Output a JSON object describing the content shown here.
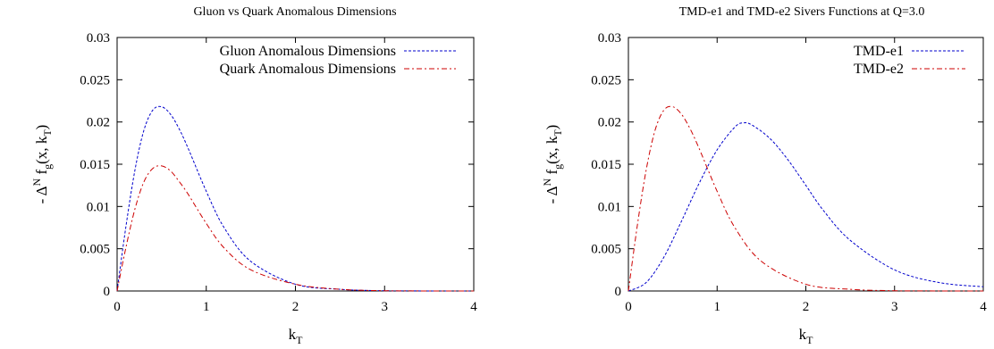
{
  "chart_data": [
    {
      "type": "line",
      "title": "Gluon vs Quark Anomalous Dimensions",
      "xlabel": {
        "main": "k",
        "sub": "T"
      },
      "ylabel": {
        "prefix": "- Δ",
        "sup": "N",
        "mid": " f",
        "sub": "g",
        "suffix": "(x, k",
        "sub2": "T",
        "end": ")"
      },
      "xlim": [
        0,
        4
      ],
      "ylim": [
        0,
        0.03
      ],
      "xticks": [
        "0",
        "1",
        "2",
        "3",
        "4"
      ],
      "yticks": [
        "0",
        "0.005",
        "0.01",
        "0.015",
        "0.02",
        "0.025",
        "0.03"
      ],
      "grid": false,
      "legend_position": "top-right",
      "series": [
        {
          "name": "Gluon Anomalous Dimensions",
          "color": "#0000cc",
          "dash": "dashed",
          "x": [
            0,
            0.1,
            0.2,
            0.3,
            0.4,
            0.5,
            0.6,
            0.7,
            0.8,
            1.0,
            1.2,
            1.5,
            2.0,
            2.5,
            3.0,
            3.5,
            4.0
          ],
          "y": [
            0,
            0.0077,
            0.0143,
            0.019,
            0.0214,
            0.0218,
            0.0209,
            0.0191,
            0.0168,
            0.0118,
            0.0075,
            0.0035,
            0.0008,
            0.0002,
            3e-05,
            5e-06,
            1e-06
          ]
        },
        {
          "name": "Quark Anomalous Dimensions",
          "color": "#cc0000",
          "dash": "dashdot",
          "x": [
            0,
            0.1,
            0.2,
            0.3,
            0.4,
            0.5,
            0.6,
            0.7,
            0.8,
            1.0,
            1.2,
            1.5,
            2.0,
            2.5,
            3.0,
            3.5,
            4.0
          ],
          "y": [
            0,
            0.0052,
            0.0097,
            0.0129,
            0.0145,
            0.0148,
            0.0142,
            0.0129,
            0.0114,
            0.008,
            0.0051,
            0.0025,
            0.0008,
            0.0002,
            3e-05,
            5e-06,
            1e-06
          ]
        }
      ]
    },
    {
      "type": "line",
      "title": "TMD-e1 and TMD-e2 Sivers Functions at Q=3.0",
      "xlabel": {
        "main": "k",
        "sub": "T"
      },
      "ylabel": {
        "prefix": "- Δ",
        "sup": "N",
        "mid": " f",
        "sub": "g",
        "suffix": "(x, k",
        "sub2": "T",
        "end": ")"
      },
      "xlim": [
        0,
        4
      ],
      "ylim": [
        0,
        0.03
      ],
      "xticks": [
        "0",
        "1",
        "2",
        "3",
        "4"
      ],
      "yticks": [
        "0",
        "0.005",
        "0.01",
        "0.015",
        "0.02",
        "0.025",
        "0.03"
      ],
      "grid": false,
      "legend_position": "top-right",
      "series": [
        {
          "name": "TMD-e1",
          "color": "#0000cc",
          "dash": "dashed",
          "x": [
            0,
            0.2,
            0.4,
            0.6,
            0.8,
            1.0,
            1.2,
            1.3,
            1.4,
            1.6,
            1.8,
            2.0,
            2.2,
            2.5,
            3.0,
            3.5,
            4.0
          ],
          "y": [
            0,
            0.001,
            0.004,
            0.0083,
            0.0128,
            0.0167,
            0.0194,
            0.0199,
            0.0196,
            0.018,
            0.0155,
            0.0125,
            0.0095,
            0.006,
            0.0025,
            0.001,
            0.0005
          ]
        },
        {
          "name": "TMD-e2",
          "color": "#cc0000",
          "dash": "dashdot",
          "x": [
            0,
            0.1,
            0.2,
            0.3,
            0.4,
            0.5,
            0.6,
            0.7,
            0.8,
            1.0,
            1.2,
            1.5,
            2.0,
            2.5,
            3.0,
            3.5,
            4.0
          ],
          "y": [
            0,
            0.0077,
            0.0143,
            0.019,
            0.0214,
            0.0218,
            0.0209,
            0.0191,
            0.0168,
            0.0118,
            0.0075,
            0.0035,
            0.0008,
            0.0002,
            3e-05,
            5e-06,
            1e-06
          ]
        }
      ]
    }
  ]
}
